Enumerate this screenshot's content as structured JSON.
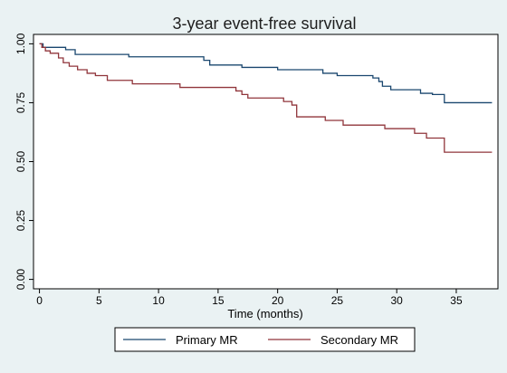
{
  "chart_data": {
    "type": "line",
    "title": "3-year event-free survival",
    "xlabel": "Time (months)",
    "ylabel": "",
    "xlim": [
      -0.5,
      38.5
    ],
    "ylim": [
      -0.04,
      1.04
    ],
    "x_ticks": [
      0,
      5,
      10,
      15,
      20,
      25,
      30,
      35
    ],
    "y_ticks": [
      0.0,
      0.25,
      0.5,
      0.75,
      1.0
    ],
    "y_tick_labels": [
      "0.00",
      "0.25",
      "0.50",
      "0.75",
      "1.00"
    ],
    "grid": false,
    "legend_position": "bottom",
    "step": true,
    "series": [
      {
        "name": "Primary MR",
        "color": "#1a476f",
        "points": [
          [
            0,
            1.0
          ],
          [
            0.3,
            0.985
          ],
          [
            2.2,
            0.975
          ],
          [
            3.0,
            0.955
          ],
          [
            7.5,
            0.945
          ],
          [
            13.8,
            0.93
          ],
          [
            14.3,
            0.91
          ],
          [
            17.0,
            0.9
          ],
          [
            20.0,
            0.89
          ],
          [
            23.8,
            0.875
          ],
          [
            25.0,
            0.865
          ],
          [
            28.0,
            0.855
          ],
          [
            28.5,
            0.84
          ],
          [
            28.8,
            0.82
          ],
          [
            29.5,
            0.805
          ],
          [
            32.0,
            0.79
          ],
          [
            33.0,
            0.785
          ],
          [
            34.0,
            0.75
          ],
          [
            38.0,
            0.75
          ]
        ]
      },
      {
        "name": "Secondary MR",
        "color": "#90353b",
        "points": [
          [
            0,
            1.0
          ],
          [
            0.2,
            0.985
          ],
          [
            0.5,
            0.97
          ],
          [
            0.9,
            0.96
          ],
          [
            1.6,
            0.94
          ],
          [
            2.0,
            0.92
          ],
          [
            2.5,
            0.905
          ],
          [
            3.2,
            0.89
          ],
          [
            4.0,
            0.875
          ],
          [
            4.7,
            0.865
          ],
          [
            5.7,
            0.845
          ],
          [
            7.8,
            0.83
          ],
          [
            11.8,
            0.815
          ],
          [
            16.5,
            0.8
          ],
          [
            17.0,
            0.785
          ],
          [
            17.5,
            0.77
          ],
          [
            20.5,
            0.755
          ],
          [
            21.2,
            0.74
          ],
          [
            21.6,
            0.69
          ],
          [
            24.0,
            0.675
          ],
          [
            25.5,
            0.655
          ],
          [
            29.0,
            0.64
          ],
          [
            31.5,
            0.62
          ],
          [
            32.5,
            0.6
          ],
          [
            34.0,
            0.54
          ],
          [
            38.0,
            0.54
          ]
        ]
      }
    ]
  }
}
